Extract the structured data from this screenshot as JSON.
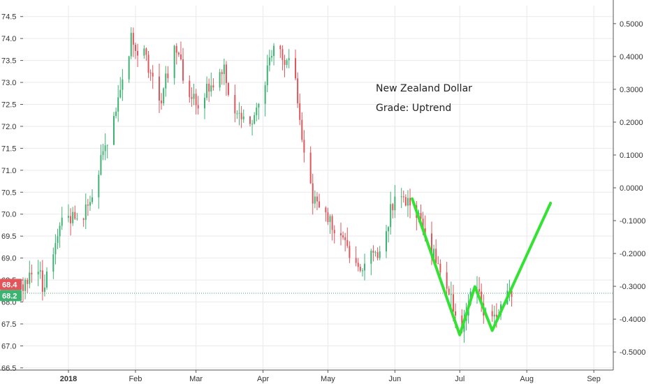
{
  "chart_data": {
    "type": "candlestick",
    "title": "",
    "annotation": {
      "line1": "New Zealand Dollar",
      "line2": "Grade: Uptrend"
    },
    "left_axis": {
      "ylim": [
        66.45,
        74.75
      ],
      "ticks": [
        "66.5",
        "67.0",
        "67.5",
        "68.0",
        "68.5",
        "69.0",
        "69.5",
        "70.0",
        "70.5",
        "71.0",
        "71.5",
        "72.0",
        "72.5",
        "73.0",
        "73.5",
        "74.0",
        "74.5"
      ]
    },
    "right_axis": {
      "ylim": [
        -0.555,
        0.555
      ],
      "ticks": [
        "0.5000",
        "0.4000",
        "0.3000",
        "0.2000",
        "0.1000",
        "0.0000",
        "-0.1000",
        "-0.2000",
        "-0.3000",
        "-0.4000",
        "-0.5000"
      ]
    },
    "x_axis": {
      "labels": [
        {
          "label": "2018",
          "date": "2018-01-01",
          "bold": true
        },
        {
          "label": "Feb",
          "date": "2018-02-01"
        },
        {
          "label": "Mar",
          "date": "2018-03-01"
        },
        {
          "label": "Apr",
          "date": "2018-04-01"
        },
        {
          "label": "May",
          "date": "2018-05-01"
        },
        {
          "label": "Jun",
          "date": "2018-06-01"
        },
        {
          "label": "Jul",
          "date": "2018-07-01"
        },
        {
          "label": "Aug",
          "date": "2018-08-01"
        },
        {
          "label": "Sep",
          "date": "2018-09-01"
        }
      ],
      "range": [
        "2017-12-11",
        "2018-09-10"
      ]
    },
    "price_tags": [
      {
        "label": "68.4",
        "value": 68.4,
        "color": "#e2555a"
      },
      {
        "label": "68.2",
        "value": 68.2,
        "color": "#3cb371"
      }
    ],
    "reference_line": {
      "value": 68.2,
      "color": "#3aa76d"
    },
    "trend_path": {
      "color": "#33e233",
      "points": [
        {
          "date": "2018-06-09",
          "value": 70.35
        },
        {
          "date": "2018-07-01",
          "value": 67.25
        },
        {
          "date": "2018-07-08",
          "value": 68.35
        },
        {
          "date": "2018-07-16",
          "value": 67.35
        },
        {
          "date": "2018-08-12",
          "value": 70.25
        }
      ]
    },
    "candle_waypoints": [
      {
        "date": "2017-12-11",
        "value": 68.4
      },
      {
        "date": "2017-12-18",
        "value": 68.9
      },
      {
        "date": "2017-12-20",
        "value": 68.3
      },
      {
        "date": "2017-12-25",
        "value": 68.9
      },
      {
        "date": "2017-12-28",
        "value": 69.8
      },
      {
        "date": "2018-01-02",
        "value": 70.0
      },
      {
        "date": "2018-01-08",
        "value": 70.0
      },
      {
        "date": "2018-01-15",
        "value": 71.0
      },
      {
        "date": "2018-01-22",
        "value": 72.2
      },
      {
        "date": "2018-01-26",
        "value": 73.1
      },
      {
        "date": "2018-01-30",
        "value": 74.0
      },
      {
        "date": "2018-02-06",
        "value": 73.5
      },
      {
        "date": "2018-02-12",
        "value": 72.5
      },
      {
        "date": "2018-02-16",
        "value": 73.3
      },
      {
        "date": "2018-02-20",
        "value": 73.8
      },
      {
        "date": "2018-02-24",
        "value": 73.0
      },
      {
        "date": "2018-03-02",
        "value": 72.3
      },
      {
        "date": "2018-03-08",
        "value": 73.0
      },
      {
        "date": "2018-03-14",
        "value": 73.2
      },
      {
        "date": "2018-03-20",
        "value": 72.3
      },
      {
        "date": "2018-03-25",
        "value": 71.9
      },
      {
        "date": "2018-03-30",
        "value": 72.6
      },
      {
        "date": "2018-04-06",
        "value": 73.7
      },
      {
        "date": "2018-04-12",
        "value": 73.5
      },
      {
        "date": "2018-04-16",
        "value": 73.0
      },
      {
        "date": "2018-04-22",
        "value": 70.6
      },
      {
        "date": "2018-04-30",
        "value": 70.0
      },
      {
        "date": "2018-05-10",
        "value": 69.2
      },
      {
        "date": "2018-05-16",
        "value": 68.8
      },
      {
        "date": "2018-05-24",
        "value": 69.2
      },
      {
        "date": "2018-06-01",
        "value": 70.3
      },
      {
        "date": "2018-06-09",
        "value": 70.3
      },
      {
        "date": "2018-06-18",
        "value": 69.2
      },
      {
        "date": "2018-06-26",
        "value": 68.2
      },
      {
        "date": "2018-07-01",
        "value": 67.4
      },
      {
        "date": "2018-07-08",
        "value": 68.3
      },
      {
        "date": "2018-07-14",
        "value": 67.5
      },
      {
        "date": "2018-07-19",
        "value": 67.8
      },
      {
        "date": "2018-07-25",
        "value": 68.2
      }
    ],
    "colors": {
      "up": "#3cb371",
      "down": "#e2555a",
      "grid": "#e9e9ee",
      "axis": "#555555"
    }
  }
}
